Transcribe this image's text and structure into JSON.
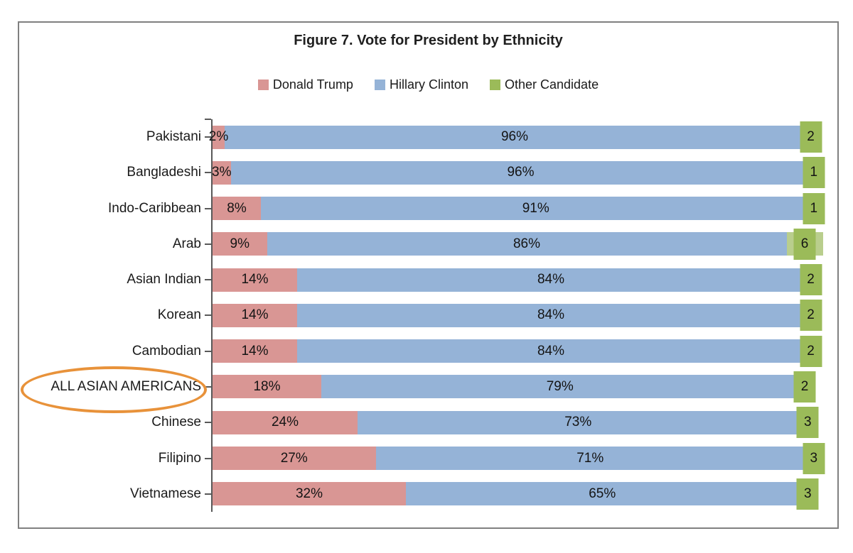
{
  "page": {
    "background": "#ffffff",
    "frame_border_color": "#808080"
  },
  "chart_data": {
    "type": "bar",
    "variant": "horizontal-stacked",
    "title": "Figure 7. Vote for President by Ethnicity",
    "categories": [
      "Pakistani",
      "Bangladeshi",
      "Indo-Caribbean",
      "Arab",
      "Asian Indian",
      "Korean",
      "Cambodian",
      "ALL ASIAN AMERICANS",
      "Chinese",
      "Filipino",
      "Vietnamese"
    ],
    "series": [
      {
        "name": "Donald Trump",
        "color": "#D99694",
        "values": [
          2,
          3,
          8,
          9,
          14,
          14,
          14,
          18,
          24,
          27,
          32
        ],
        "labels": [
          "2%",
          "3%",
          "8%",
          "9%",
          "14%",
          "14%",
          "14%",
          "18%",
          "24%",
          "27%",
          "32%"
        ]
      },
      {
        "name": "Hillary Clinton",
        "color": "#95B3D7",
        "values": [
          96,
          96,
          91,
          86,
          84,
          84,
          84,
          79,
          73,
          71,
          65
        ],
        "labels": [
          "96%",
          "96%",
          "91%",
          "86%",
          "84%",
          "84%",
          "84%",
          "79%",
          "73%",
          "71%",
          "65%"
        ]
      },
      {
        "name": "Other Candidate",
        "color": "#9BBB59",
        "bar_color": "#B9CE8D",
        "values": [
          2,
          1,
          1,
          6,
          2,
          2,
          2,
          2,
          3,
          3,
          3
        ],
        "labels": [
          "2",
          "1",
          "1",
          "6",
          "2",
          "2",
          "2",
          "2",
          "3",
          "3",
          "3"
        ]
      }
    ],
    "xlim": [
      0,
      100
    ],
    "axis_color": "#595959",
    "grid": false,
    "legend_position": "top",
    "annotation": {
      "type": "ellipse",
      "target_category": "ALL ASIAN AMERICANS",
      "color": "#E8923A"
    }
  }
}
